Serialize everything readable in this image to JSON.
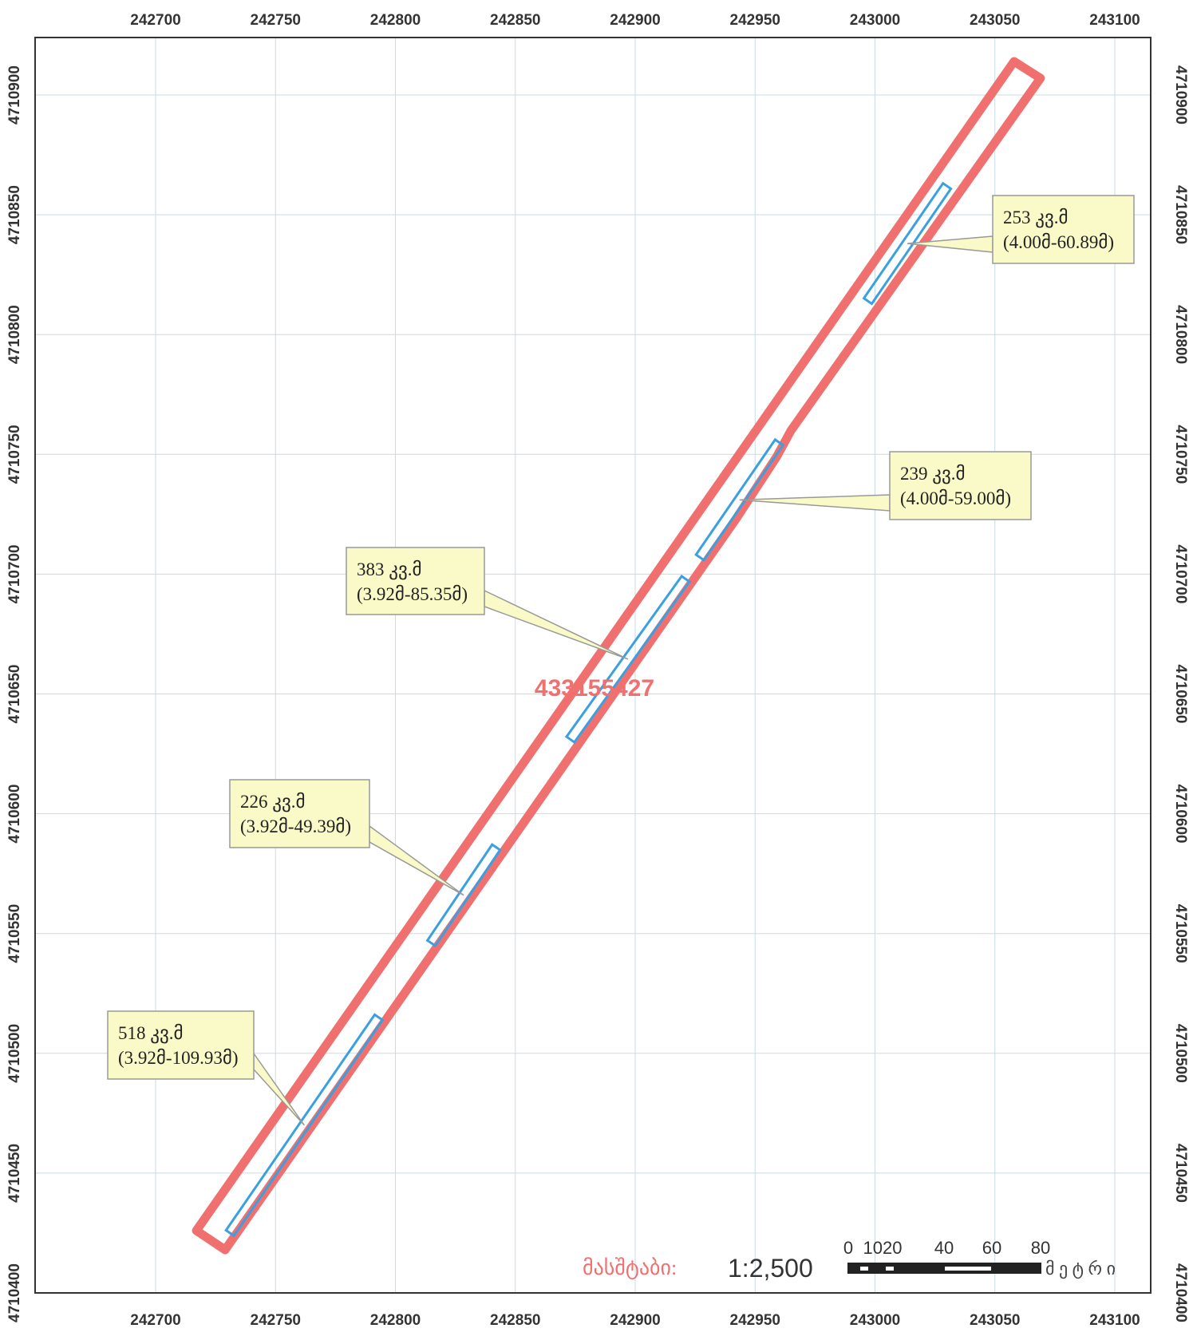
{
  "map": {
    "x_ticks": [
      "242700",
      "242750",
      "242800",
      "242850",
      "242900",
      "242950",
      "243000",
      "243050",
      "243100"
    ],
    "y_ticks": [
      "4710400",
      "4710450",
      "4710500",
      "4710550",
      "4710600",
      "4710650",
      "4710700",
      "4710750",
      "4710800",
      "4710850",
      "4710900"
    ],
    "parcel": {
      "id": "433155427",
      "outline_color": "#f07070",
      "vertices": [
        [
          242717,
          4710426
        ],
        [
          243058,
          4710914
        ],
        [
          243069,
          4710907
        ],
        [
          242965,
          4710760
        ],
        [
          242959,
          4710749
        ],
        [
          242942,
          4710723
        ],
        [
          242729,
          4710418
        ]
      ]
    },
    "segments": [
      {
        "label": "518 კვ.მ",
        "detail": "(3.92მ-109.93მ)",
        "from": [
          242731,
          4710425
        ],
        "to": [
          242793,
          4710515
        ]
      },
      {
        "label": "226  კვ.მ",
        "detail": "(3.92მ-49.39მ)",
        "from": [
          242815,
          4710546
        ],
        "to": [
          242842,
          4710586
        ]
      },
      {
        "label": "383  კვ.მ",
        "detail": "(3.92მ-85.35მ)",
        "from": [
          242873,
          4710631
        ],
        "to": [
          242921,
          4710698
        ]
      },
      {
        "label": "239 კვ.მ",
        "detail": "(4.00მ-59.00მ)",
        "from": [
          242927,
          4710707
        ],
        "to": [
          242960,
          4710755
        ]
      },
      {
        "label": "253 კვ.მ",
        "detail": "(4.00მ-60.89მ)",
        "from": [
          242997,
          4710814
        ],
        "to": [
          243030,
          4710862
        ]
      }
    ],
    "segment_color": "#3aa0e0",
    "callout_fill": "#fafac8"
  },
  "scale": {
    "label": "მასშტაბი:",
    "ratio": "1:2,500",
    "ticks": [
      "0",
      "1020",
      "40",
      "60",
      "80"
    ],
    "unit": "მ ე ტ რ ი"
  }
}
